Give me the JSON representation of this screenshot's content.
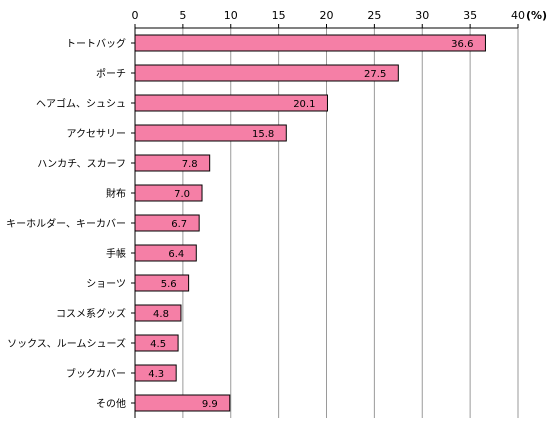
{
  "chart_data": {
    "type": "bar",
    "orientation": "horizontal",
    "categories": [
      "トートバッグ",
      "ポーチ",
      "ヘアゴム、シュシュ",
      "アクセサリー",
      "ハンカチ、スカーフ",
      "財布",
      "キーホルダー、キーカバー",
      "手帳",
      "ショーツ",
      "コスメ系グッズ",
      "ソックス、ルームシューズ",
      "ブックカバー",
      "その他"
    ],
    "values": [
      36.6,
      27.5,
      20.1,
      15.8,
      7.8,
      7.0,
      6.7,
      6.4,
      5.6,
      4.8,
      4.5,
      4.3,
      9.9
    ],
    "value_labels": [
      "36.6",
      "27.5",
      "20.1",
      "15.8",
      "7.8",
      "7.0",
      "6.7",
      "6.4",
      "5.6",
      "4.8",
      "4.5",
      "4.3",
      "9.9"
    ],
    "xlim": [
      0,
      40
    ],
    "xticks": [
      0,
      5,
      10,
      15,
      20,
      25,
      30,
      35,
      40
    ],
    "xtick_labels": [
      "0",
      "5",
      "10",
      "15",
      "20",
      "25",
      "30",
      "35",
      "40"
    ],
    "unit_label": "(%)",
    "axis_position": "top",
    "grid": true,
    "bar_color": "#f57fa6",
    "bar_edge_color": "#000000",
    "grid_color": "#9a9a9a"
  }
}
